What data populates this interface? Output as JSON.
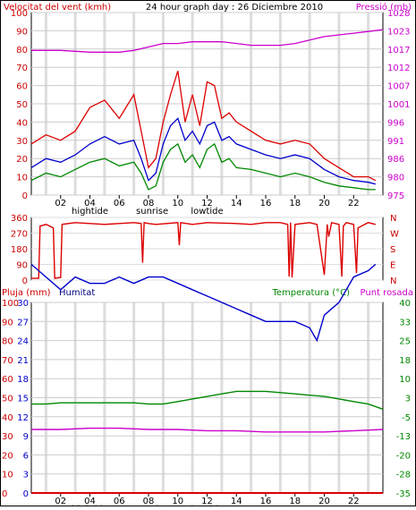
{
  "chart_data": [
    {
      "type": "line",
      "title": "24 hour graph day : 26 Diciembre 2010",
      "left_axis_title": "Velocitat del vent (kmh)",
      "right_axis_title": "Pressió (mb)",
      "left_ticks": [
        "0",
        "10",
        "20",
        "30",
        "40",
        "50",
        "60",
        "70",
        "80",
        "90",
        "100"
      ],
      "right_ticks": [
        "975",
        "980",
        "986",
        "991",
        "996",
        "1001",
        "1007",
        "1012",
        "1017",
        "1023",
        "1028"
      ],
      "ylim_left": [
        0,
        100
      ],
      "ylim_right": [
        975,
        1028
      ],
      "x_ticks": [
        "02",
        "04",
        "06",
        "08",
        "10",
        "12",
        "14",
        "16",
        "18",
        "20",
        "22"
      ],
      "x_events": [
        {
          "label": "hightide",
          "hour": 4.0
        },
        {
          "label": "sunrise",
          "hour": 8.25
        },
        {
          "label": "lowtide",
          "hour": 12.0
        }
      ],
      "xlim": [
        0,
        24
      ],
      "series": [
        {
          "color": "#dd0000",
          "x": [
            0,
            1,
            2,
            3,
            4,
            5,
            6,
            7,
            7.5,
            8,
            8.5,
            9,
            9.5,
            10,
            10.5,
            11,
            11.5,
            12,
            12.5,
            13,
            13.5,
            14,
            15,
            16,
            17,
            18,
            19,
            20,
            21,
            22,
            23,
            23.5
          ],
          "values": [
            28,
            33,
            30,
            35,
            48,
            52,
            42,
            55,
            35,
            15,
            20,
            40,
            55,
            68,
            40,
            55,
            38,
            62,
            60,
            42,
            45,
            40,
            35,
            30,
            28,
            30,
            28,
            20,
            15,
            10,
            10,
            8
          ]
        },
        {
          "color": "#0000cc",
          "x": [
            0,
            1,
            2,
            3,
            4,
            5,
            6,
            7,
            7.5,
            8,
            8.5,
            9,
            9.5,
            10,
            10.5,
            11,
            11.5,
            12,
            12.5,
            13,
            13.5,
            14,
            15,
            16,
            17,
            18,
            19,
            20,
            21,
            22,
            23,
            23.5
          ],
          "values": [
            15,
            20,
            18,
            22,
            28,
            32,
            28,
            30,
            20,
            8,
            12,
            28,
            38,
            42,
            30,
            35,
            28,
            38,
            40,
            30,
            32,
            28,
            25,
            22,
            20,
            22,
            20,
            14,
            10,
            8,
            7,
            6
          ]
        },
        {
          "color": "#008800",
          "x": [
            0,
            1,
            2,
            3,
            4,
            5,
            6,
            7,
            7.5,
            8,
            8.5,
            9,
            9.5,
            10,
            10.5,
            11,
            11.5,
            12,
            12.5,
            13,
            13.5,
            14,
            15,
            16,
            17,
            18,
            19,
            20,
            21,
            22,
            23,
            23.5
          ],
          "values": [
            8,
            12,
            10,
            14,
            18,
            20,
            16,
            18,
            12,
            3,
            5,
            18,
            25,
            28,
            18,
            22,
            15,
            25,
            28,
            18,
            20,
            15,
            14,
            12,
            10,
            12,
            10,
            7,
            5,
            4,
            3,
            3
          ]
        },
        {
          "color": "#cc00cc",
          "axis": "right",
          "x": [
            0,
            2,
            4,
            6,
            7,
            8,
            9,
            10,
            11,
            12,
            13,
            14,
            15,
            16,
            17,
            18,
            19,
            20,
            21,
            22,
            23,
            24
          ],
          "values": [
            1017,
            1017,
            1016.5,
            1016.5,
            1017,
            1018,
            1019,
            1019,
            1019.5,
            1019.5,
            1019.5,
            1019,
            1018.5,
            1018.5,
            1018.5,
            1019,
            1020,
            1021,
            1021.5,
            1022,
            1022.5,
            1023
          ]
        }
      ]
    },
    {
      "type": "line",
      "left_ticks": [
        "360",
        "270",
        "180",
        "90",
        "0"
      ],
      "right_ticks": [
        "N",
        "W",
        "S",
        "E",
        "N"
      ],
      "ylim": [
        0,
        360
      ],
      "xlim": [
        0,
        24
      ],
      "series": [
        {
          "color": "#dd0000",
          "x": [
            0,
            0.5,
            0.6,
            1,
            1.5,
            1.6,
            2,
            2.1,
            3,
            5,
            7,
            7.5,
            7.6,
            7.7,
            8,
            8.5,
            10,
            10.1,
            10.2,
            11,
            12,
            14,
            15,
            16,
            17,
            17.5,
            17.6,
            17.7,
            17.8,
            18,
            19,
            19.5,
            20,
            20.2,
            20.3,
            20.5,
            21,
            21.2,
            21.3,
            21.5,
            22,
            22.2,
            22.3,
            23,
            23.5
          ],
          "values": [
            10,
            10,
            310,
            320,
            300,
            10,
            15,
            320,
            330,
            320,
            330,
            325,
            100,
            330,
            325,
            320,
            330,
            200,
            330,
            320,
            330,
            325,
            320,
            330,
            330,
            320,
            20,
            330,
            15,
            320,
            330,
            320,
            30,
            320,
            250,
            330,
            320,
            20,
            310,
            330,
            320,
            40,
            300,
            330,
            320
          ]
        }
      ]
    },
    {
      "type": "line",
      "left_axis_title": "Pluja (mm)",
      "left_axis_title2": "Humitat",
      "right_axis_title": "Temperatura (°C)",
      "right_axis_title2": "Punt rosada",
      "rain_ticks": [
        "100",
        "90",
        "80",
        "70",
        "60",
        "50",
        "40",
        "30",
        "20",
        "10",
        "0"
      ],
      "humidity_ticks": [
        "30",
        "27",
        "24",
        "21",
        "18",
        "15",
        "12",
        "9",
        "6",
        "3",
        "0"
      ],
      "temp_ticks": [
        "40",
        "33",
        "25",
        "18",
        "10",
        "3",
        "-5",
        "-13",
        "-20",
        "-28",
        "-35"
      ],
      "x_ticks": [
        "02",
        "04",
        "06",
        "08",
        "10",
        "12",
        "14",
        "16",
        "18",
        "20",
        "22"
      ],
      "x_events": [
        {
          "label": "hightide",
          "hour": 4.0
        },
        {
          "label": "sunrise",
          "hour": 8.25
        },
        {
          "label": "lowtide",
          "hour": 12.0
        }
      ],
      "xlim": [
        0,
        24
      ],
      "series": [
        {
          "color": "#0000cc",
          "axis": "humidity",
          "x": [
            0,
            1,
            2,
            3,
            4,
            5,
            6,
            7,
            8,
            9,
            10,
            11,
            12,
            13,
            14,
            15,
            16,
            17,
            18,
            19,
            19.5,
            20,
            21,
            22,
            23,
            23.5
          ],
          "values": [
            36,
            34,
            32,
            34,
            33,
            33,
            34,
            33,
            34,
            34,
            33,
            32,
            31,
            30,
            29,
            28,
            27,
            27,
            27,
            26,
            24,
            28,
            30,
            34,
            35,
            36
          ]
        },
        {
          "color": "#008800",
          "axis": "temperature",
          "x": [
            0,
            1,
            2,
            3,
            4,
            5,
            6,
            7,
            8,
            9,
            10,
            11,
            12,
            13,
            14,
            15,
            16,
            17,
            18,
            19,
            20,
            21,
            22,
            23,
            24
          ],
          "values": [
            0,
            0,
            0.5,
            0.5,
            0.5,
            0.5,
            0.5,
            0.5,
            0,
            0,
            1,
            2,
            3,
            4,
            5,
            5,
            5,
            4.5,
            4,
            3.5,
            3,
            2,
            1,
            0,
            -2
          ]
        },
        {
          "color": "#cc00cc",
          "axis": "temperature",
          "x": [
            0,
            2,
            4,
            6,
            8,
            10,
            12,
            14,
            16,
            18,
            20,
            22,
            24
          ],
          "values": [
            -10,
            -10,
            -9.5,
            -9.5,
            -10,
            -10,
            -10.5,
            -10.5,
            -11,
            -11,
            -11,
            -10.5,
            -10
          ]
        },
        {
          "color": "#dd0000",
          "axis": "rain",
          "x": [
            0,
            24
          ],
          "values": [
            0,
            0
          ]
        }
      ]
    }
  ]
}
